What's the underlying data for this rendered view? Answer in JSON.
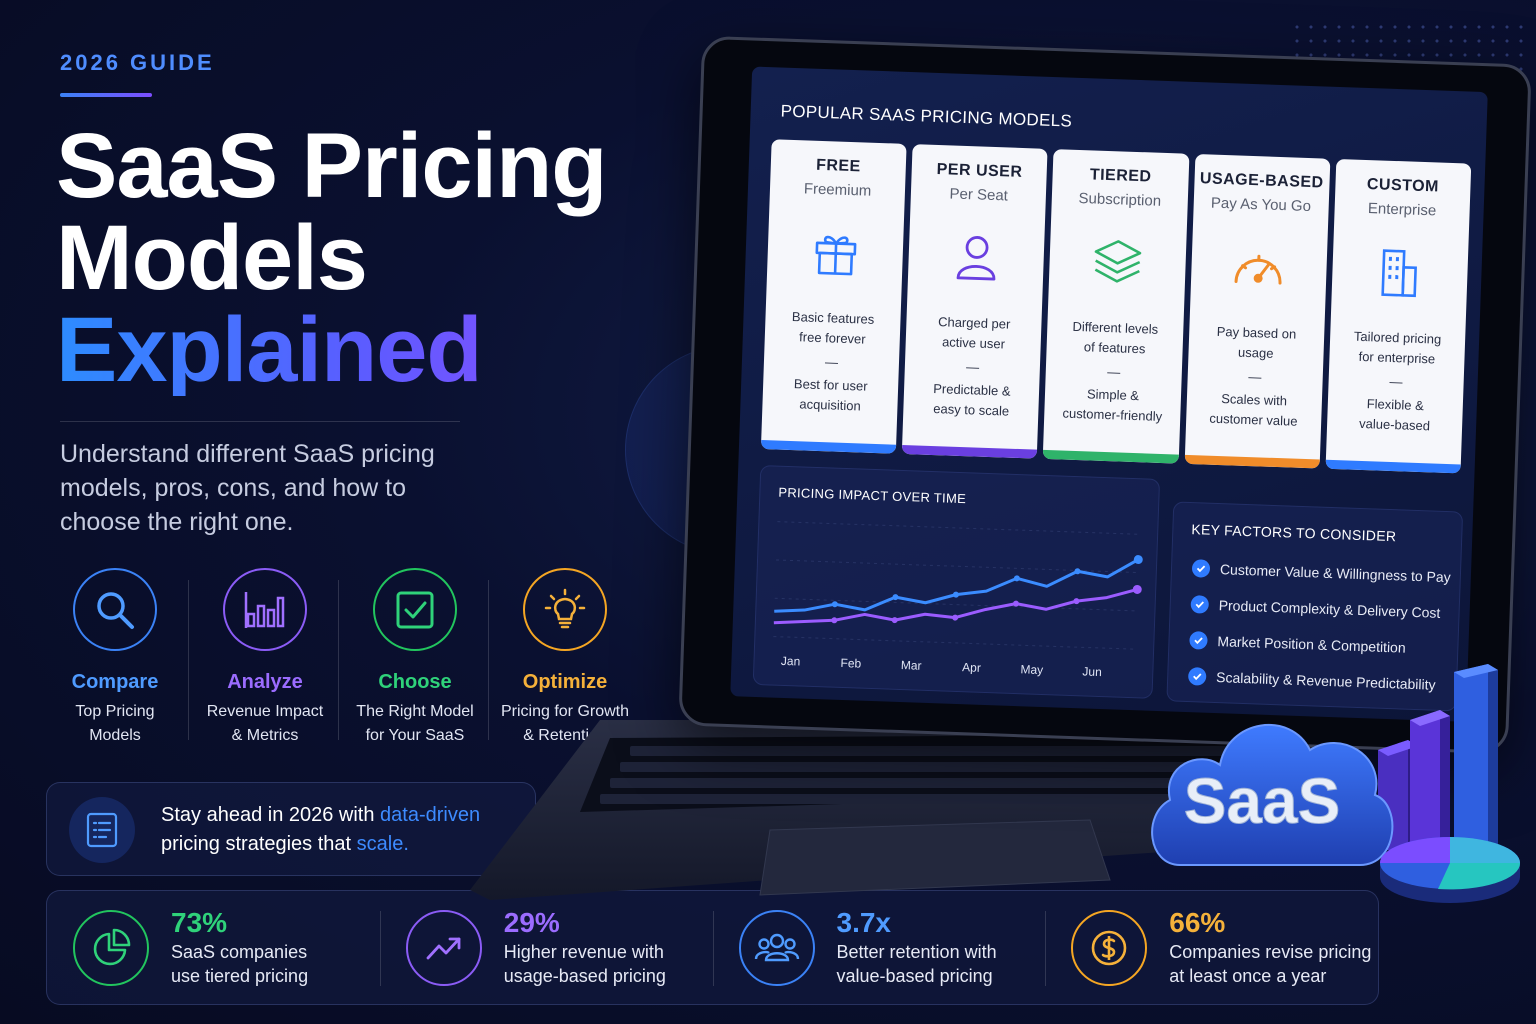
{
  "hero": {
    "eyebrow": "2026 GUIDE",
    "title_line1": "SaaS Pricing",
    "title_line2": "Models",
    "title_line3": "Explained",
    "subtitle": "Understand different SaaS pricing models, pros, cons, and how to choose the right one."
  },
  "steps": [
    {
      "title": "Compare",
      "desc1": "Top Pricing",
      "desc2": "Models",
      "icon": "search-icon",
      "color": "#3b82f6"
    },
    {
      "title": "Analyze",
      "desc1": "Revenue Impact",
      "desc2": "& Metrics",
      "icon": "bar-chart-icon",
      "color": "#8b5cf6"
    },
    {
      "title": "Choose",
      "desc1": "The Right Model",
      "desc2": "for Your SaaS",
      "icon": "checkbox-icon",
      "color": "#22c55e"
    },
    {
      "title": "Optimize",
      "desc1": "Pricing for Growth",
      "desc2": "& Retention",
      "icon": "lightbulb-icon",
      "color": "#f5a623"
    }
  ],
  "banner": {
    "part1": "Stay ahead in 2026 with ",
    "highlight1": "data-driven",
    "part2": "pricing strategies that ",
    "highlight2": "scale.",
    "icon": "document-icon"
  },
  "stats": [
    {
      "value": "73%",
      "line1": "SaaS companies",
      "line2": "use tiered pricing",
      "icon": "pie-chart-icon",
      "color": "#22c55e"
    },
    {
      "value": "29%",
      "line1": "Higher revenue with",
      "line2": "usage-based pricing",
      "icon": "trend-up-icon",
      "color": "#8b5cf6"
    },
    {
      "value": "3.7x",
      "line1": "Better retention with",
      "line2": "value-based pricing",
      "icon": "users-icon",
      "color": "#3b82f6"
    },
    {
      "value": "66%",
      "line1": "Companies revise pricing",
      "line2": "at least once a year",
      "icon": "dollar-icon",
      "color": "#f5a623"
    }
  ],
  "screen": {
    "heading": "POPULAR SAAS PRICING MODELS",
    "cards": [
      {
        "title": "FREE",
        "sub": "Freemium",
        "desc1": "Basic features",
        "desc2": "free forever",
        "dash": "—",
        "note1": "Best for user",
        "note2": "acquisition",
        "icon": "gift-icon",
        "color": "#2f7bff"
      },
      {
        "title": "PER USER",
        "sub": "Per Seat",
        "desc1": "Charged per",
        "desc2": "active user",
        "dash": "—",
        "note1": "Predictable &",
        "note2": "easy to scale",
        "icon": "user-icon",
        "color": "#6a3fe0"
      },
      {
        "title": "TIERED",
        "sub": "Subscription",
        "desc1": "Different levels",
        "desc2": "of features",
        "dash": "—",
        "note1": "Simple &",
        "note2": "customer-friendly",
        "icon": "layers-icon",
        "color": "#2fb36a"
      },
      {
        "title": "USAGE-BASED",
        "sub": "Pay As You Go",
        "desc1": "Pay based on",
        "desc2": "usage",
        "dash": "—",
        "note1": "Scales with",
        "note2": "customer value",
        "icon": "gauge-icon",
        "color": "#f08c2a"
      },
      {
        "title": "CUSTOM",
        "sub": "Enterprise",
        "desc1": "Tailored pricing",
        "desc2": "for enterprise",
        "dash": "—",
        "note1": "Flexible &",
        "note2": "value-based",
        "icon": "building-icon",
        "color": "#2f7bff"
      }
    ],
    "factors": {
      "title": "KEY FACTORS TO CONSIDER",
      "items": [
        "Customer Value & Willingness to Pay",
        "Product Complexity & Delivery Cost",
        "Market Position & Competition",
        "Scalability & Revenue Predictability"
      ]
    },
    "badge": "SaaS"
  },
  "chart_data": {
    "type": "line",
    "title": "PRICING IMPACT OVER TIME",
    "categories": [
      "Jan",
      "Feb",
      "Mar",
      "Apr",
      "May",
      "Jun"
    ],
    "x": [
      0,
      0.5,
      1,
      1.5,
      2,
      2.5,
      3,
      3.5,
      4,
      4.5,
      5,
      5.5,
      6
    ],
    "series": [
      {
        "values": [
          22,
          24,
          30,
          26,
          38,
          34,
          42,
          46,
          58,
          52,
          66,
          62,
          78
        ],
        "color": "#3b8cff"
      },
      {
        "values": [
          12,
          14,
          16,
          22,
          18,
          24,
          22,
          30,
          36,
          32,
          40,
          44,
          52
        ],
        "color": "#9b5cff"
      }
    ],
    "xlabel": "",
    "ylabel": "",
    "ylim": [
      0,
      100
    ],
    "grid": true
  }
}
